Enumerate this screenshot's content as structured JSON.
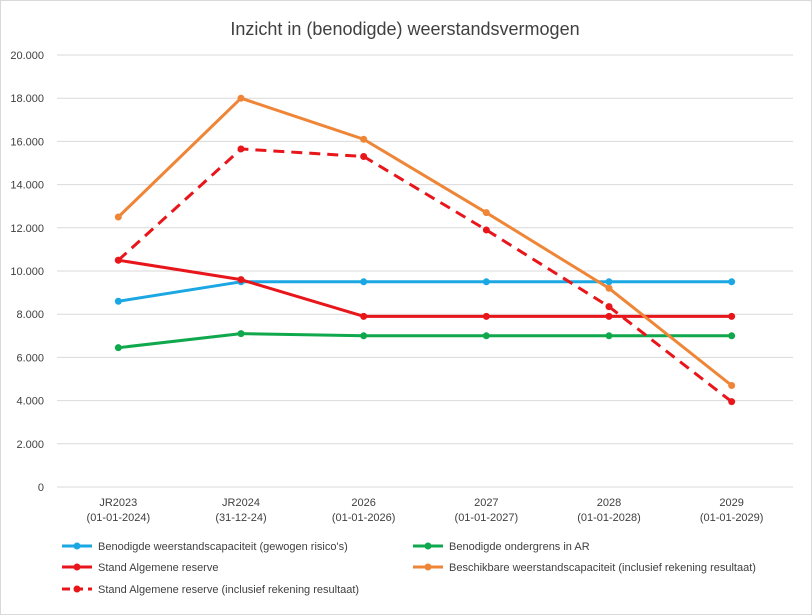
{
  "chart_data": {
    "type": "line",
    "title": "Inzicht in (benodigde) weerstandsvermogen",
    "xlabel": "",
    "ylabel": "",
    "categories": [
      [
        "JR2023",
        "(01-01-2024)"
      ],
      [
        "JR2024",
        "(31-12-24)"
      ],
      [
        "2026",
        "(01-01-2026)"
      ],
      [
        "2027",
        "(01-01-2027)"
      ],
      [
        "2028",
        "(01-01-2028)"
      ],
      [
        "2029",
        "(01-01-2029)"
      ]
    ],
    "ylim": [
      0,
      20000
    ],
    "y_ticks": [
      0,
      2000,
      4000,
      6000,
      8000,
      10000,
      12000,
      14000,
      16000,
      18000,
      20000
    ],
    "y_tick_labels": [
      "0",
      "2.000",
      "4.000",
      "6.000",
      "8.000",
      "10.000",
      "12.000",
      "14.000",
      "16.000",
      "18.000",
      "20.000"
    ],
    "grid": true,
    "legend_position": "bottom",
    "series": [
      {
        "name": "Benodigde weerstandscapaciteit (gewogen risico's)",
        "color": "#1ba7e2",
        "dashed": false,
        "values": [
          8600,
          9500,
          9500,
          9500,
          9500,
          9500
        ]
      },
      {
        "name": "Benodigde ondergrens in AR",
        "color": "#10a84c",
        "dashed": false,
        "values": [
          6450,
          7100,
          7000,
          7000,
          7000,
          7000
        ]
      },
      {
        "name": "Stand Algemene reserve",
        "color": "#e8161b",
        "dashed": false,
        "values": [
          10500,
          9600,
          7900,
          7900,
          7900,
          7900
        ]
      },
      {
        "name": "Beschikbare weerstandscapaciteit (inclusief rekening resultaat)",
        "color": "#ee8537",
        "dashed": false,
        "values": [
          12500,
          18000,
          16100,
          12700,
          9200,
          4700
        ]
      },
      {
        "name": "Stand Algemene reserve (inclusief rekening resultaat)",
        "color": "#e8161b",
        "dashed": true,
        "values": [
          10500,
          15650,
          15300,
          11900,
          8350,
          3950
        ]
      }
    ]
  }
}
